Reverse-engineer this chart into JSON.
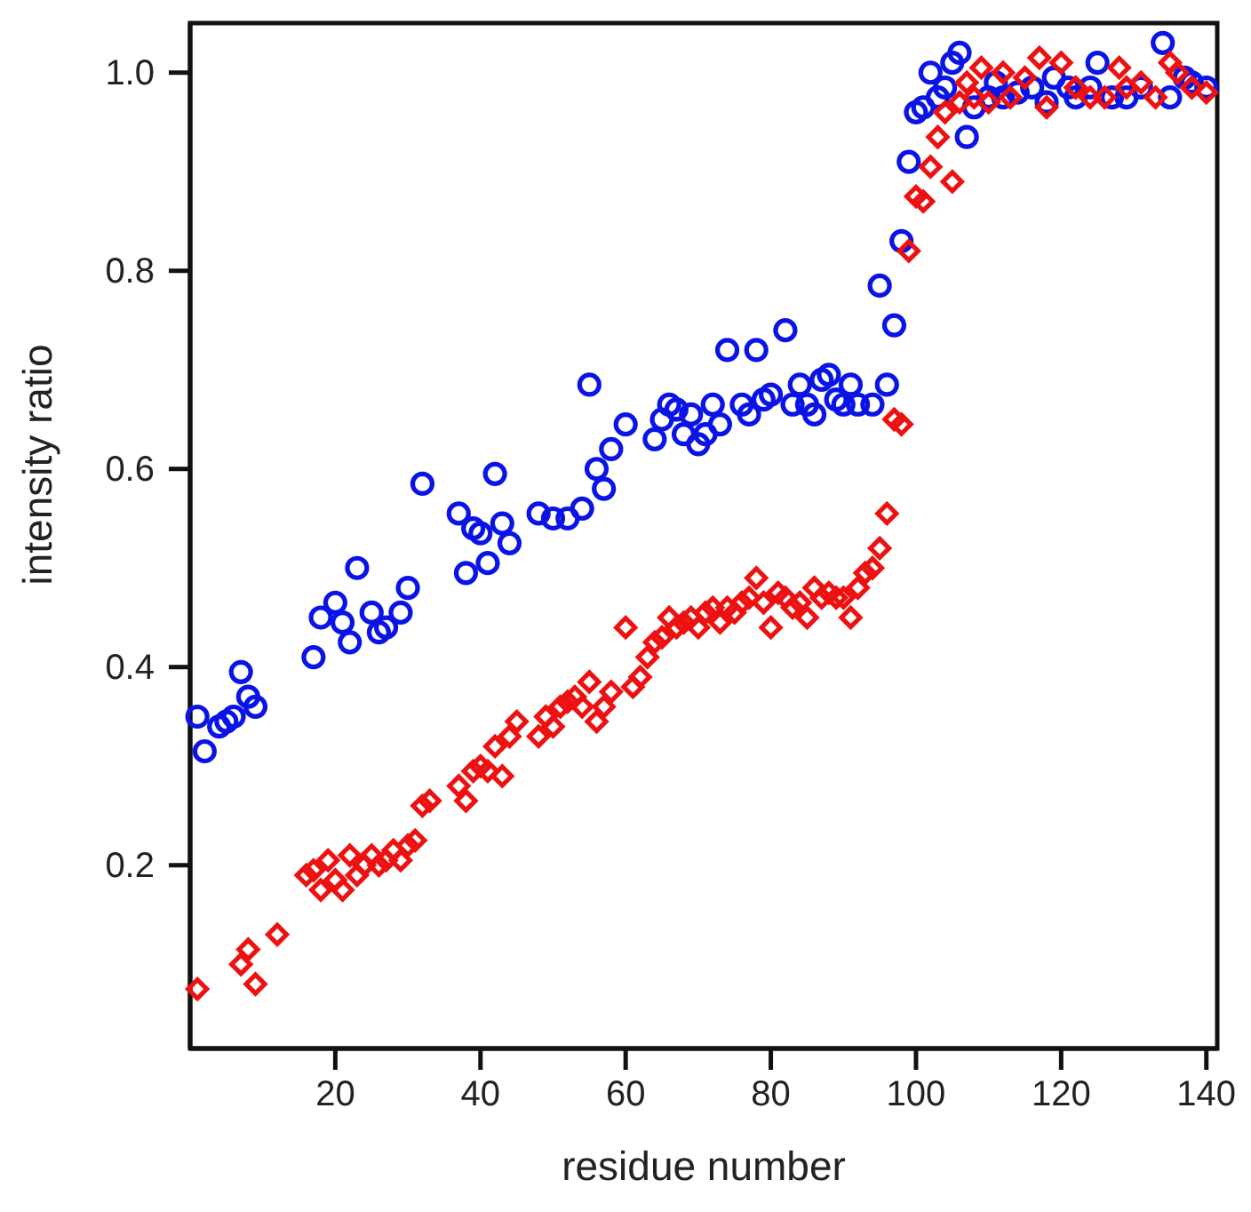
{
  "chart_data": {
    "type": "scatter",
    "xlabel": "residue number",
    "ylabel": "intensity ratio",
    "xlim": [
      0,
      141.5
    ],
    "ylim": [
      0.015,
      1.05
    ],
    "xticks": [
      20,
      40,
      60,
      80,
      100,
      120,
      140
    ],
    "yticks": [
      {
        "value": 0.2,
        "label": "0.2"
      },
      {
        "value": 0.4,
        "label": "0.4"
      },
      {
        "value": 0.6,
        "label": "0.6"
      },
      {
        "value": 0.8,
        "label": "0.8"
      },
      {
        "value": 1.0,
        "label": "1.0"
      }
    ],
    "grid": false,
    "series": [
      {
        "color": "#0a14e6",
        "marker": "circle",
        "x": [
          1,
          2,
          4,
          5,
          6,
          7,
          8,
          9,
          17,
          18,
          20,
          21,
          22,
          23,
          25,
          26,
          27,
          29,
          30,
          32,
          37,
          38,
          39,
          40,
          41,
          42,
          43,
          44,
          48,
          50,
          52,
          54,
          55,
          56,
          57,
          58,
          60,
          64,
          65,
          66,
          67,
          68,
          69,
          70,
          71,
          72,
          73,
          74,
          76,
          77,
          78,
          79,
          80,
          82,
          83,
          84,
          85,
          86,
          87,
          88,
          89,
          90,
          91,
          92,
          94,
          95,
          96,
          97,
          98,
          99,
          100,
          101,
          102,
          103,
          104,
          105,
          106,
          107,
          108,
          110,
          111,
          112,
          114,
          116,
          118,
          119,
          121,
          122,
          124,
          125,
          127,
          129,
          131,
          134,
          135,
          137,
          138,
          140
        ],
        "values": [
          0.35,
          0.315,
          0.34,
          0.345,
          0.35,
          0.395,
          0.37,
          0.36,
          0.41,
          0.45,
          0.465,
          0.445,
          0.425,
          0.5,
          0.455,
          0.435,
          0.44,
          0.455,
          0.48,
          0.585,
          0.555,
          0.495,
          0.54,
          0.535,
          0.505,
          0.595,
          0.545,
          0.525,
          0.555,
          0.55,
          0.55,
          0.56,
          0.685,
          0.6,
          0.58,
          0.62,
          0.645,
          0.63,
          0.65,
          0.665,
          0.66,
          0.635,
          0.655,
          0.625,
          0.635,
          0.665,
          0.645,
          0.72,
          0.665,
          0.655,
          0.72,
          0.67,
          0.675,
          0.74,
          0.665,
          0.685,
          0.665,
          0.655,
          0.69,
          0.695,
          0.67,
          0.665,
          0.685,
          0.665,
          0.665,
          0.785,
          0.685,
          0.745,
          0.83,
          0.91,
          0.96,
          0.965,
          1.0,
          0.975,
          0.985,
          1.01,
          1.02,
          0.935,
          0.965,
          0.975,
          0.99,
          0.975,
          0.98,
          0.985,
          0.97,
          0.995,
          0.985,
          0.975,
          0.985,
          1.01,
          0.975,
          0.975,
          0.985,
          1.03,
          0.975,
          0.995,
          0.99,
          0.985
        ]
      },
      {
        "color": "#ee1111",
        "marker": "diamond",
        "x": [
          1,
          7,
          8,
          9,
          12,
          16,
          17,
          18,
          19,
          20,
          21,
          22,
          23,
          24,
          25,
          26,
          27,
          28,
          29,
          30,
          31,
          32,
          33,
          37,
          38,
          39,
          40,
          41,
          42,
          43,
          44,
          45,
          48,
          49,
          50,
          51,
          52,
          53,
          54,
          55,
          56,
          57,
          58,
          60,
          61,
          62,
          63,
          64,
          65,
          66,
          67,
          68,
          69,
          70,
          71,
          72,
          73,
          74,
          75,
          76,
          77,
          78,
          79,
          80,
          81,
          82,
          83,
          84,
          85,
          86,
          87,
          88,
          89,
          90,
          91,
          92,
          93,
          94,
          95,
          96,
          97,
          98,
          99,
          100,
          101,
          102,
          103,
          104,
          105,
          106,
          107,
          108,
          109,
          110,
          112,
          113,
          115,
          117,
          118,
          120,
          122,
          124,
          126,
          128,
          129,
          131,
          133,
          135,
          136,
          138,
          140
        ],
        "values": [
          0.075,
          0.1,
          0.115,
          0.08,
          0.13,
          0.19,
          0.195,
          0.175,
          0.205,
          0.185,
          0.175,
          0.21,
          0.19,
          0.2,
          0.21,
          0.2,
          0.205,
          0.215,
          0.205,
          0.22,
          0.225,
          0.26,
          0.265,
          0.28,
          0.265,
          0.295,
          0.3,
          0.295,
          0.32,
          0.29,
          0.33,
          0.345,
          0.33,
          0.35,
          0.34,
          0.36,
          0.365,
          0.37,
          0.36,
          0.385,
          0.345,
          0.36,
          0.375,
          0.44,
          0.38,
          0.39,
          0.41,
          0.425,
          0.43,
          0.45,
          0.44,
          0.445,
          0.45,
          0.44,
          0.455,
          0.46,
          0.445,
          0.46,
          0.455,
          0.465,
          0.47,
          0.49,
          0.465,
          0.44,
          0.475,
          0.47,
          0.46,
          0.465,
          0.45,
          0.48,
          0.47,
          0.475,
          0.47,
          0.47,
          0.45,
          0.48,
          0.495,
          0.5,
          0.52,
          0.555,
          0.65,
          0.645,
          0.82,
          0.875,
          0.87,
          0.905,
          0.935,
          0.96,
          0.89,
          0.97,
          0.99,
          0.975,
          1.005,
          0.97,
          1.0,
          0.975,
          0.995,
          1.015,
          0.965,
          1.01,
          0.985,
          0.975,
          0.975,
          1.005,
          0.985,
          0.99,
          0.975,
          1.01,
          1.0,
          0.985,
          0.98
        ]
      }
    ]
  }
}
